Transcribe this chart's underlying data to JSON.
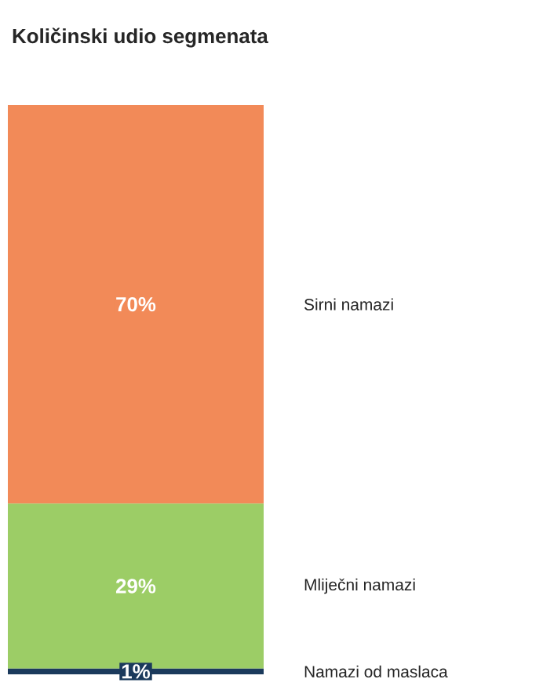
{
  "chart_data": {
    "type": "bar",
    "title": "Količinski udio segmenata",
    "categories": [
      null
    ],
    "stacked": true,
    "ylim": [
      0,
      100
    ],
    "series": [
      {
        "name": "Namazi od maslaca",
        "color": "#1b3a5c",
        "values": [
          1
        ],
        "value_labels": [
          "1%"
        ]
      },
      {
        "name": "Mliječni namazi",
        "color": "#9ccd66",
        "values": [
          29
        ],
        "value_labels": [
          "29%"
        ]
      },
      {
        "name": "Sirni namazi",
        "color": "#f28a58",
        "values": [
          70
        ],
        "value_labels": [
          "70%"
        ]
      }
    ]
  }
}
